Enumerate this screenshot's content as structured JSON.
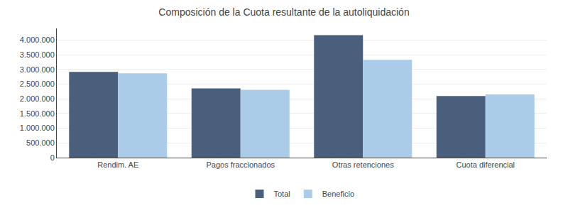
{
  "chart_data": {
    "type": "bar",
    "title": "Composición de la Cuota resultante de la autoliquidación",
    "categories": [
      "Rendim. AE",
      "Pagos fraccionados",
      "Otras retenciones",
      "Cuota diferencial"
    ],
    "series": [
      {
        "name": "Total",
        "color": "#4a5f7c",
        "values": [
          2920000,
          2360000,
          4170000,
          2100000
        ]
      },
      {
        "name": "Beneficio",
        "color": "#aacce8",
        "values": [
          2870000,
          2310000,
          3330000,
          2150000
        ]
      }
    ],
    "ylim": [
      0,
      4400000
    ],
    "yticks": [
      0,
      {
        "value": 500000,
        "label": "500.000"
      },
      {
        "value": 1000000,
        "label": "1.000.000"
      },
      {
        "value": 1500000,
        "label": "1.500.000"
      },
      {
        "value": 2000000,
        "label": "2.000.000"
      },
      {
        "value": 2500000,
        "label": "2.500.000"
      },
      {
        "value": 3000000,
        "label": "3.000.000"
      },
      {
        "value": 3500000,
        "label": "3.500.000"
      },
      {
        "value": 4000000,
        "label": "4.000.000"
      }
    ],
    "grid": true,
    "legend": "bottom"
  }
}
